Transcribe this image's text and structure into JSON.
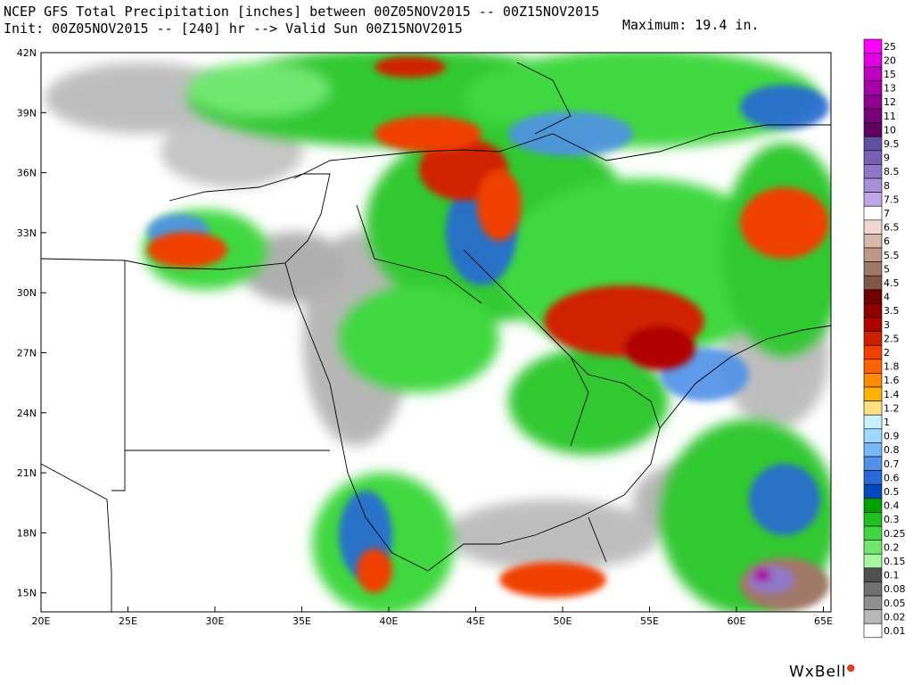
{
  "header": {
    "line1": "NCEP GFS Total Precipitation [inches] between 00Z05NOV2015 -- 00Z15NOV2015",
    "line2": "Init: 00Z05NOV2015 -- [240] hr --> Valid Sun 00Z15NOV2015",
    "maximum": "Maximum: 19.4 in."
  },
  "map": {
    "lat_labels": [
      "42N",
      "39N",
      "36N",
      "33N",
      "30N",
      "27N",
      "24N",
      "21N",
      "18N",
      "15N"
    ],
    "lon_labels": [
      "20E",
      "25E",
      "30E",
      "35E",
      "40E",
      "45E",
      "50E",
      "55E",
      "60E",
      "65E"
    ]
  },
  "legend": {
    "levels": [
      {
        "label": "25",
        "color": "#ff00ff"
      },
      {
        "label": "20",
        "color": "#e000e0"
      },
      {
        "label": "15",
        "color": "#c000c0"
      },
      {
        "label": "13",
        "color": "#a800a8"
      },
      {
        "label": "12",
        "color": "#900090"
      },
      {
        "label": "11",
        "color": "#780078"
      },
      {
        "label": "10",
        "color": "#600060"
      },
      {
        "label": "9.5",
        "color": "#6050a0"
      },
      {
        "label": "9",
        "color": "#7860b8"
      },
      {
        "label": "8.5",
        "color": "#9078c8"
      },
      {
        "label": "8",
        "color": "#a890d8"
      },
      {
        "label": "7.5",
        "color": "#c0a8e8"
      },
      {
        "label": "7",
        "color": "#ffffff"
      },
      {
        "label": "6.5",
        "color": "#f0d8d0"
      },
      {
        "label": "6",
        "color": "#d8b8a8"
      },
      {
        "label": "5.5",
        "color": "#c09888"
      },
      {
        "label": "5",
        "color": "#a07868"
      },
      {
        "label": "4.5",
        "color": "#805848"
      },
      {
        "label": "4",
        "color": "#700000"
      },
      {
        "label": "3.5",
        "color": "#900000"
      },
      {
        "label": "3",
        "color": "#b00000"
      },
      {
        "label": "2.5",
        "color": "#d02000"
      },
      {
        "label": "2",
        "color": "#f04000"
      },
      {
        "label": "1.8",
        "color": "#ff6000"
      },
      {
        "label": "1.6",
        "color": "#ff8c00"
      },
      {
        "label": "1.4",
        "color": "#ffb000"
      },
      {
        "label": "1.2",
        "color": "#ffe080"
      },
      {
        "label": "1",
        "color": "#c8f0ff"
      },
      {
        "label": "0.9",
        "color": "#a0d8ff"
      },
      {
        "label": "0.8",
        "color": "#78b8f8"
      },
      {
        "label": "0.7",
        "color": "#5090e8"
      },
      {
        "label": "0.6",
        "color": "#2868d8"
      },
      {
        "label": "0.5",
        "color": "#0048c0"
      },
      {
        "label": "0.4",
        "color": "#00a000"
      },
      {
        "label": "0.3",
        "color": "#20c020"
      },
      {
        "label": "0.25",
        "color": "#40d840"
      },
      {
        "label": "0.2",
        "color": "#70e870"
      },
      {
        "label": "0.15",
        "color": "#a8f8a0"
      },
      {
        "label": "0.1",
        "color": "#505050"
      },
      {
        "label": "0.08",
        "color": "#707070"
      },
      {
        "label": "0.05",
        "color": "#909090"
      },
      {
        "label": "0.02",
        "color": "#b8b8b8"
      },
      {
        "label": "0.01",
        "color": "#ffffff"
      }
    ]
  },
  "brand": {
    "name": "WxBell"
  }
}
